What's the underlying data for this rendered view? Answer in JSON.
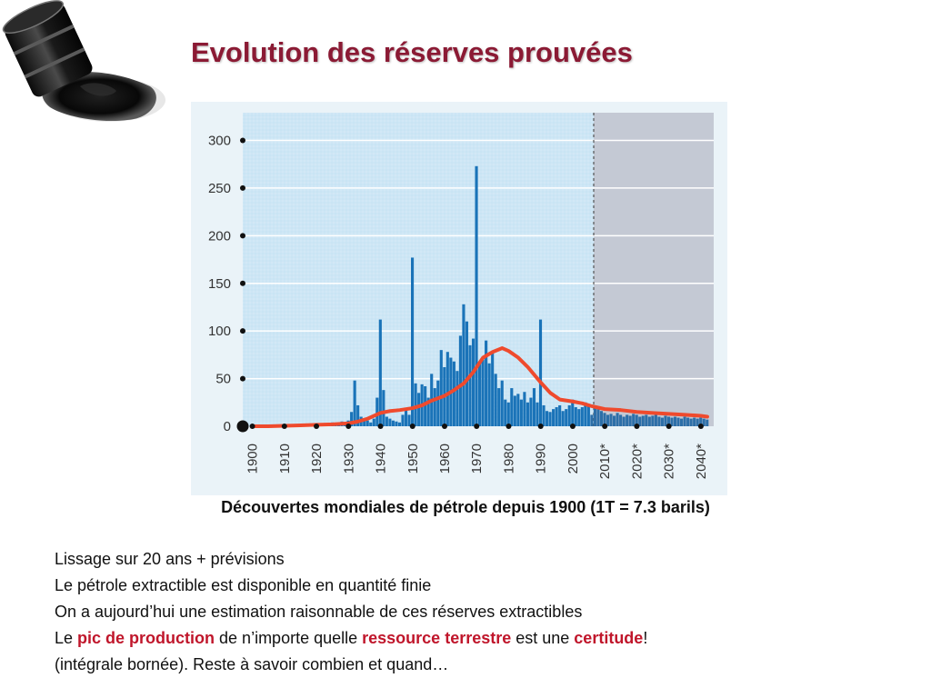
{
  "slide": {
    "title": "Evolution des réserves prouvées",
    "caption": "Découvertes mondiales de pétrole depuis 1900 (1T = 7.3 barils)",
    "lines": [
      "Lissage sur 20 ans + prévisions",
      "Le pétrole extractible est disponible en quantité finie",
      "On a aujourd’hui une estimation raisonnable de ces réserves extractibles"
    ],
    "line4": {
      "p1": "Le ",
      "h1": "pic de production",
      "p2": " de n’importe quelle ",
      "h2": "ressource terrestre",
      "p3": " est une ",
      "h3": "certitude",
      "p4": "!"
    },
    "line5": "(intégrale bornée). Reste à savoir combien et quand…"
  },
  "colors": {
    "title": "#8b1a34",
    "highlight": "#c0162b",
    "bars": "#1a73b8",
    "smoothing": "#ef4a2d",
    "history_bg": "#cde6f5",
    "forecast_bg": "#c4c9d4"
  },
  "chart_data": {
    "type": "bar",
    "ylim": [
      0,
      310
    ],
    "xlim": [
      1897,
      2044
    ],
    "forecast_start": 2006,
    "yticks": [
      0,
      50,
      100,
      150,
      200,
      250,
      300
    ],
    "xticks": [
      "1900",
      "1910",
      "1920",
      "1930",
      "1940",
      "1950",
      "1960",
      "1970",
      "1980",
      "1990",
      "2000",
      "2010*",
      "2020*",
      "2030*",
      "2040*"
    ],
    "xtick_years": [
      1900,
      1910,
      1920,
      1930,
      1940,
      1950,
      1960,
      1970,
      1980,
      1990,
      2000,
      2010,
      2020,
      2030,
      2040
    ],
    "bars_x": [
      1921,
      1922,
      1923,
      1924,
      1925,
      1926,
      1927,
      1928,
      1929,
      1930,
      1931,
      1932,
      1933,
      1934,
      1935,
      1936,
      1937,
      1938,
      1939,
      1940,
      1941,
      1942,
      1943,
      1944,
      1945,
      1946,
      1947,
      1948,
      1949,
      1950,
      1951,
      1952,
      1953,
      1954,
      1955,
      1956,
      1957,
      1958,
      1959,
      1960,
      1961,
      1962,
      1963,
      1964,
      1965,
      1966,
      1967,
      1968,
      1969,
      1970,
      1971,
      1972,
      1973,
      1974,
      1975,
      1976,
      1977,
      1978,
      1979,
      1980,
      1981,
      1982,
      1983,
      1984,
      1985,
      1986,
      1987,
      1988,
      1989,
      1990,
      1991,
      1992,
      1993,
      1994,
      1995,
      1996,
      1997,
      1998,
      1999,
      2000,
      2001,
      2002,
      2003,
      2004,
      2005,
      2006,
      2007,
      2008,
      2009,
      2010,
      2011,
      2012,
      2013,
      2014,
      2015,
      2016,
      2017,
      2018,
      2019,
      2020,
      2021,
      2022,
      2023,
      2024,
      2025,
      2026,
      2027,
      2028,
      2029,
      2030,
      2031,
      2032,
      2033,
      2034,
      2035,
      2036,
      2037,
      2038,
      2039,
      2040,
      2041,
      2042
    ],
    "bars_y": [
      2,
      1,
      3,
      2,
      4,
      3,
      2,
      5,
      3,
      6,
      15,
      48,
      22,
      10,
      8,
      6,
      4,
      8,
      30,
      112,
      38,
      10,
      8,
      6,
      5,
      4,
      12,
      18,
      12,
      177,
      45,
      35,
      44,
      42,
      30,
      55,
      40,
      48,
      80,
      62,
      78,
      72,
      68,
      58,
      95,
      128,
      110,
      85,
      92,
      273,
      68,
      70,
      90,
      66,
      78,
      55,
      40,
      48,
      28,
      25,
      40,
      32,
      34,
      28,
      36,
      25,
      30,
      40,
      25,
      112,
      22,
      16,
      15,
      18,
      20,
      22,
      16,
      18,
      22,
      28,
      20,
      18,
      20,
      25,
      22,
      12,
      20,
      18,
      16,
      14,
      12,
      13,
      11,
      14,
      12,
      10,
      12,
      11,
      13,
      12,
      10,
      11,
      12,
      10,
      11,
      12,
      10,
      9,
      11,
      10,
      9,
      10,
      9,
      8,
      10,
      9,
      8,
      9,
      8,
      9,
      8,
      7
    ],
    "smooth_x": [
      1900,
      1905,
      1910,
      1915,
      1920,
      1925,
      1930,
      1933,
      1936,
      1940,
      1943,
      1946,
      1950,
      1953,
      1956,
      1960,
      1963,
      1966,
      1969,
      1972,
      1975,
      1978,
      1980,
      1983,
      1986,
      1990,
      1993,
      1996,
      2000,
      2003,
      2006,
      2010,
      2015,
      2020,
      2025,
      2030,
      2035,
      2040,
      2042
    ],
    "smooth_y": [
      0,
      0,
      0.5,
      1,
      1.5,
      2,
      3,
      5,
      8,
      14,
      16,
      17,
      19,
      22,
      27,
      32,
      38,
      45,
      57,
      72,
      78,
      82,
      79,
      72,
      62,
      46,
      35,
      28,
      26,
      24,
      21,
      18,
      17,
      15,
      14,
      13,
      12,
      11,
      10
    ]
  }
}
